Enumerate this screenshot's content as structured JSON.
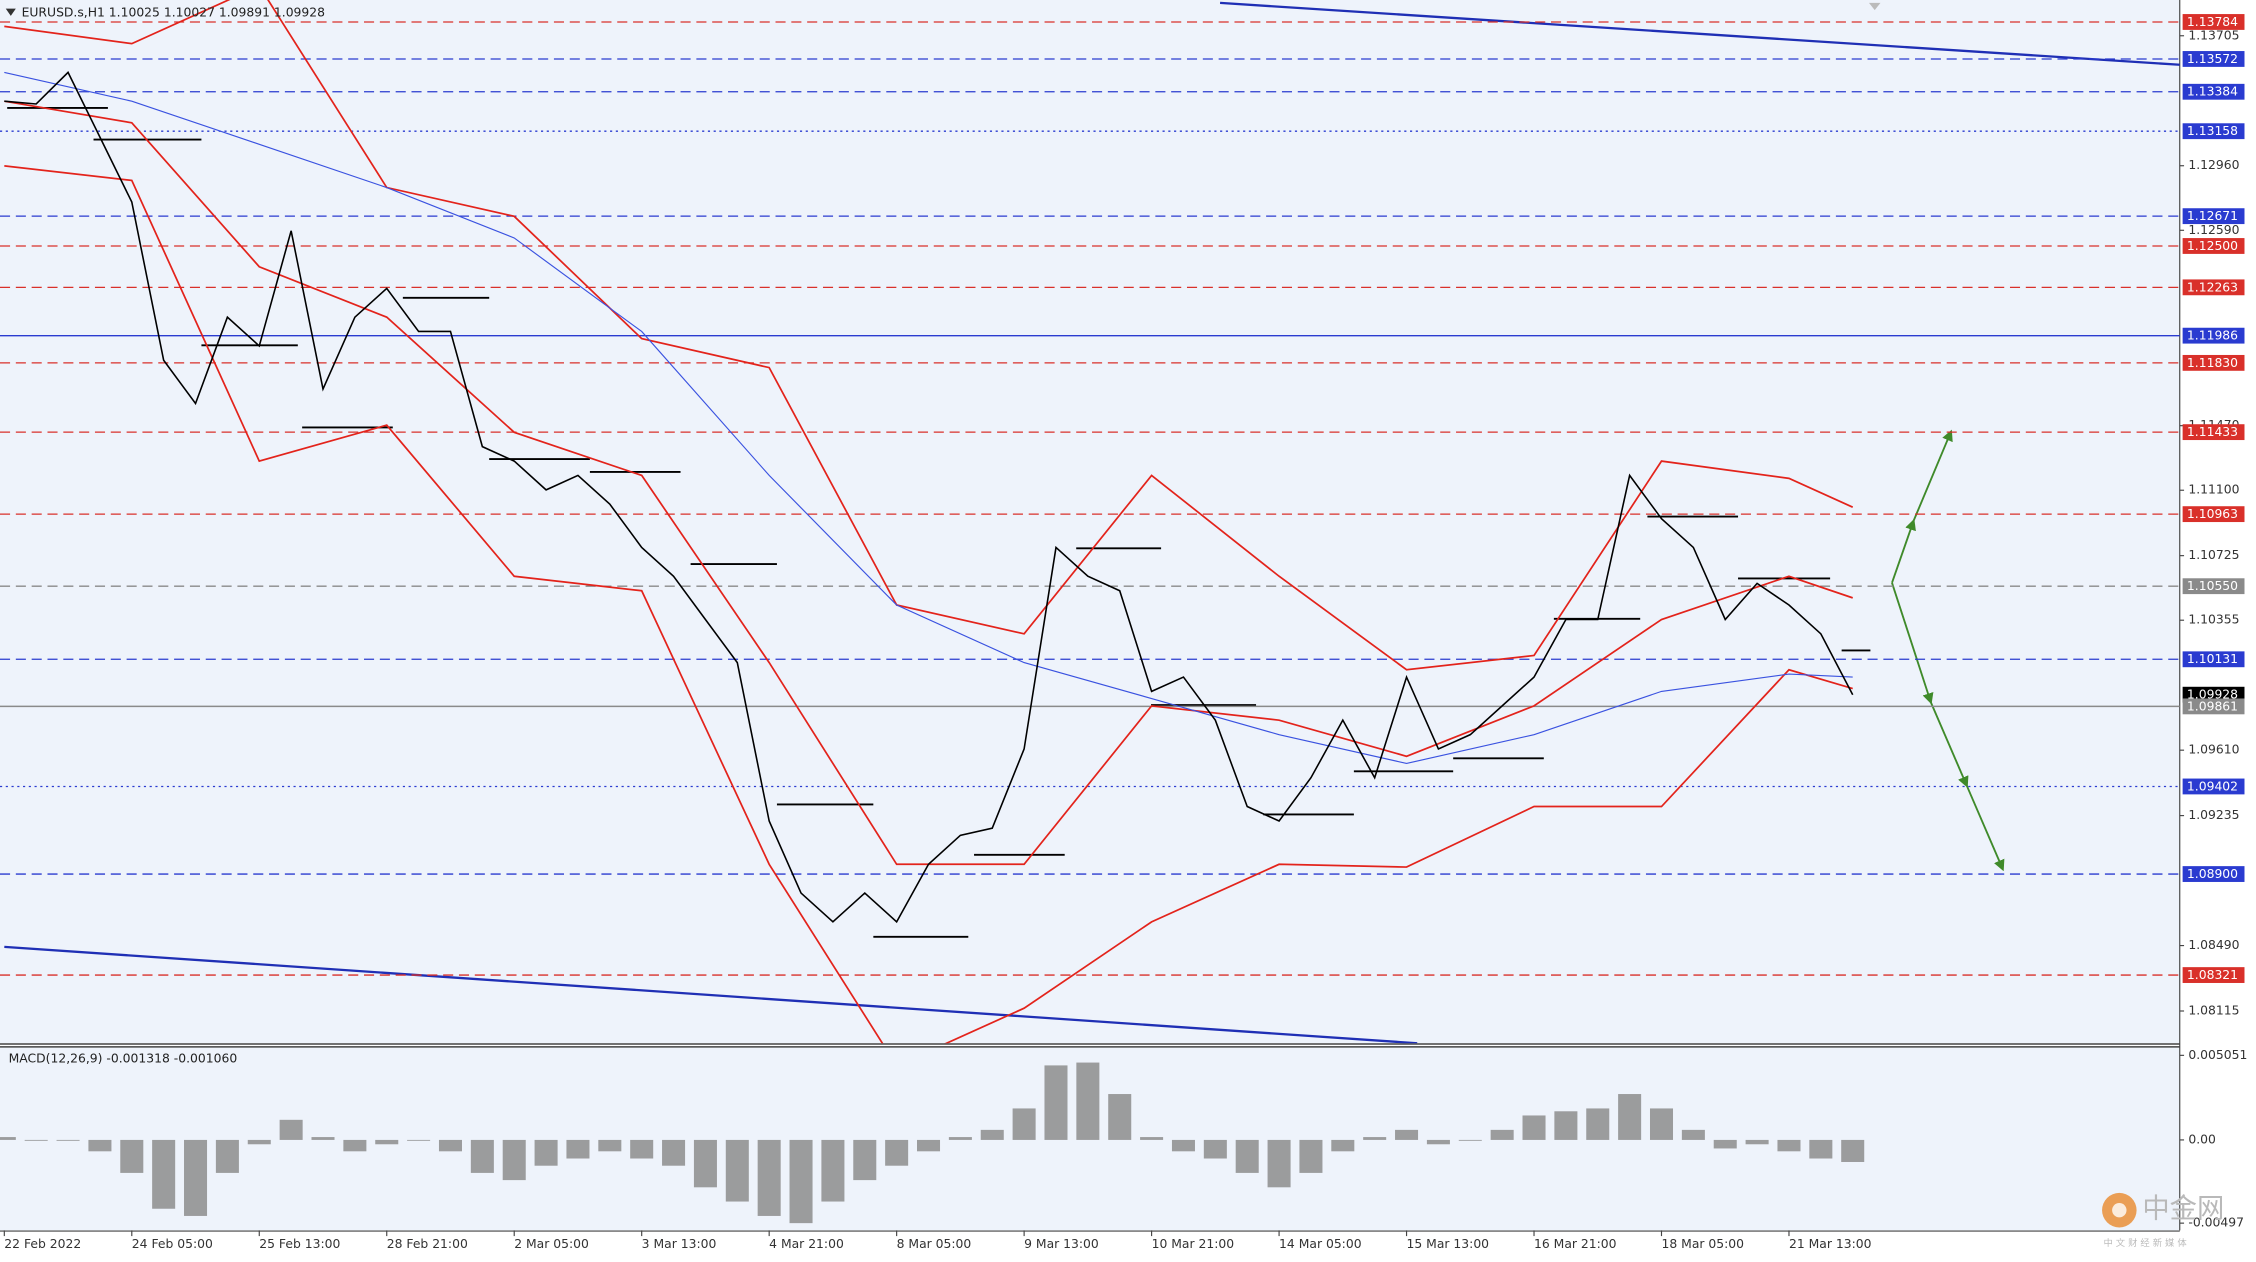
{
  "chart_data": [
    {
      "type": "line",
      "title": "EURUSD.s,H1  1.10025 1.10027 1.09891 1.09928",
      "categories": [
        "22 Feb 2022",
        null,
        null,
        null,
        "24 Feb 05:00",
        null,
        null,
        null,
        "25 Feb 13:00",
        null,
        null,
        null,
        "28 Feb 21:00",
        null,
        null,
        null,
        "2 Mar 05:00",
        null,
        null,
        null,
        "3 Mar 13:00",
        null,
        null,
        null,
        "4 Mar 21:00",
        null,
        null,
        null,
        "8 Mar 05:00",
        null,
        null,
        null,
        "9 Mar 13:00",
        null,
        null,
        null,
        "10 Mar 21:00",
        null,
        null,
        null,
        "14 Mar 05:00",
        null,
        null,
        null,
        "15 Mar 13:00",
        null,
        null,
        null,
        "16 Mar 21:00",
        null,
        null,
        null,
        "18 Mar 05:00",
        null,
        null,
        null,
        "21 Mar 13:00",
        null,
        null
      ],
      "series": [
        {
          "color": "#000000",
          "values": [
            1.1333,
            1.13314,
            1.13495,
            1.13124,
            1.12752,
            1.11845,
            1.11597,
            1.12092,
            1.11927,
            1.12587,
            1.1168,
            1.12092,
            1.12257,
            1.1201,
            1.1201,
            1.1135,
            1.11267,
            1.11102,
            1.11185,
            1.1102,
            1.10772,
            1.10607,
            1.10359,
            1.10112,
            1.09204,
            1.08791,
            1.08626,
            1.08791,
            1.08626,
            1.08956,
            1.09122,
            1.09163,
            1.09617,
            1.10772,
            1.10607,
            1.10524,
            1.09947,
            1.10029,
            1.09782,
            1.09287,
            1.09204,
            1.09452,
            1.09782,
            1.09452,
            1.10029,
            1.09617,
            1.09699,
            1.09864,
            1.10029,
            1.10359,
            1.10359,
            1.11185,
            1.10937,
            1.10772,
            1.10359,
            1.10566,
            1.10442,
            1.10277,
            1.09928
          ]
        }
      ],
      "overlays": [
        {
          "color": "#e3231b",
          "x": [
            0,
            4,
            8,
            12,
            16,
            20,
            24,
            28,
            32,
            36,
            40,
            44,
            48,
            52,
            56,
            58
          ],
          "values": [
            1.13759,
            1.1366,
            1.1399,
            1.12835,
            1.1267,
            1.11969,
            1.11803,
            1.10442,
            1.10277,
            1.11185,
            1.10607,
            1.10071,
            1.10153,
            1.11267,
            1.11168,
            1.11003
          ]
        },
        {
          "color": "#e3231b",
          "x": [
            0,
            4,
            8,
            12,
            16,
            20,
            24,
            28,
            32,
            36,
            40,
            44,
            48,
            52,
            56,
            58
          ],
          "values": [
            1.1333,
            1.13206,
            1.12381,
            1.12092,
            1.11432,
            1.11185,
            1.10112,
            1.08956,
            1.08956,
            1.09864,
            1.09782,
            1.09575,
            1.09864,
            1.10359,
            1.10607,
            1.10483
          ]
        },
        {
          "color": "#e3231b",
          "x": [
            0,
            4,
            8,
            12,
            16,
            20,
            24,
            28,
            32,
            36,
            40,
            44,
            48,
            52,
            56,
            58
          ],
          "values": [
            1.12959,
            1.12876,
            1.11267,
            1.11473,
            1.10607,
            1.10524,
            1.08956,
            1.07801,
            1.08131,
            1.08626,
            1.08956,
            1.0894,
            1.09287,
            1.09287,
            1.10071,
            1.09963
          ]
        },
        {
          "color": "#3a52e0",
          "x": [
            0,
            4,
            8,
            12,
            16,
            20,
            24,
            28,
            32,
            36,
            40,
            44,
            48,
            52,
            56,
            58
          ],
          "values": [
            1.13495,
            1.1333,
            1.13083,
            1.12835,
            1.12546,
            1.1201,
            1.11185,
            1.10442,
            1.10112,
            1.09906,
            1.09699,
            1.09534,
            1.09699,
            1.09947,
            1.10046,
            1.10029
          ]
        }
      ],
      "ylim": [
        1.0793,
        1.1391
      ],
      "yticks": [
        1.13705,
        {
          "value": 1.1296,
          "label": "1.12960"
        },
        {
          "value": 1.1259,
          "label": "1.12590"
        },
        {
          "value": 1.1147,
          "label": "1.11470"
        },
        {
          "value": 1.111,
          "label": "1.11100"
        },
        1.10725,
        1.10355,
        {
          "value": 1.0961,
          "label": "1.09610"
        },
        1.09235,
        {
          "value": 1.0849,
          "label": "1.08490"
        },
        1.08115
      ],
      "levels": [
        {
          "value": 1.13784,
          "label": "1.13784",
          "color": "#d9302a",
          "style": "dashed"
        },
        {
          "value": 1.13572,
          "label": "1.13572",
          "color": "#2a3bd0",
          "style": "dashed"
        },
        {
          "value": 1.13384,
          "label": "1.13384",
          "color": "#2a3bd0",
          "style": "dashed"
        },
        {
          "value": 1.13158,
          "label": "1.13158",
          "color": "#2a3bd0",
          "style": "dotted"
        },
        {
          "value": 1.12671,
          "label": "1.12671",
          "color": "#2a3bd0",
          "style": "dashed"
        },
        {
          "value": 1.125,
          "label": "1.12500",
          "color": "#d9302a",
          "style": "dashed"
        },
        {
          "value": 1.12263,
          "label": "1.12263",
          "color": "#d9302a",
          "style": "dashed"
        },
        {
          "value": 1.11986,
          "label": "1.11986",
          "color": "#2a3bd0",
          "style": "solid"
        },
        {
          "value": 1.1183,
          "label": "1.11830",
          "color": "#d9302a",
          "style": "dashed"
        },
        {
          "value": 1.11433,
          "label": "1.11433",
          "color": "#d9302a",
          "style": "dashed"
        },
        {
          "value": 1.10963,
          "label": "1.10963",
          "color": "#d9302a",
          "style": "dashed"
        },
        {
          "value": 1.1055,
          "label": "1.10550",
          "color": "#8a8a8a",
          "style": "dashed"
        },
        {
          "value": 1.10131,
          "label": "1.10131",
          "color": "#2a3bd0",
          "style": "dashed"
        },
        {
          "value": 1.09928,
          "label": "1.09928",
          "color": "#000000",
          "style": "none"
        },
        {
          "value": 1.09861,
          "label": "1.09861",
          "color": "#8a8a8a",
          "style": "solid"
        },
        {
          "value": 1.09402,
          "label": "1.09402",
          "color": "#2a3bd0",
          "style": "dotted"
        },
        {
          "value": 1.089,
          "label": "1.08900",
          "color": "#2a3bd0",
          "style": "dashed"
        },
        {
          "value": 1.08321,
          "label": "1.08321",
          "color": "#d9302a",
          "style": "dashed"
        }
      ]
    },
    {
      "type": "bar",
      "title": "MACD(12,26,9) -0.001318 -0.001060",
      "color": "#8c8c8c",
      "values": [
        0.00017,
        0,
        0,
        -0.00068,
        -0.00197,
        -0.00411,
        -0.00454,
        -0.00197,
        -0.00026,
        0.0012,
        0.00017,
        -0.00068,
        -0.00026,
        0,
        -0.00068,
        -0.00197,
        -0.0024,
        -0.00154,
        -0.00111,
        -0.00068,
        -0.00111,
        -0.00154,
        -0.00283,
        -0.00368,
        -0.00454,
        -0.00497,
        -0.00368,
        -0.0024,
        -0.00154,
        -0.00068,
        0.00017,
        0.0006,
        0.00188,
        0.00445,
        0.00462,
        0.00274,
        0.00017,
        -0.00068,
        -0.00111,
        -0.00197,
        -0.00283,
        -0.00197,
        -0.00068,
        0.00017,
        0.0006,
        -0.00026,
        0,
        0.0006,
        0.00146,
        0.00171,
        0.00188,
        0.00274,
        0.00188,
        0.0006,
        -0.00051,
        -0.00026,
        -0.00068,
        -0.00111,
        -0.001318
      ],
      "ylim": [
        -0.0054,
        0.0056
      ],
      "yticks": [
        0.005051,
        {
          "value": 0,
          "label": "0.00"
        },
        -0.00497
      ]
    }
  ],
  "watermark": {
    "name": "中金网",
    "tagline": "中 文 财 经 新 媒 体"
  }
}
